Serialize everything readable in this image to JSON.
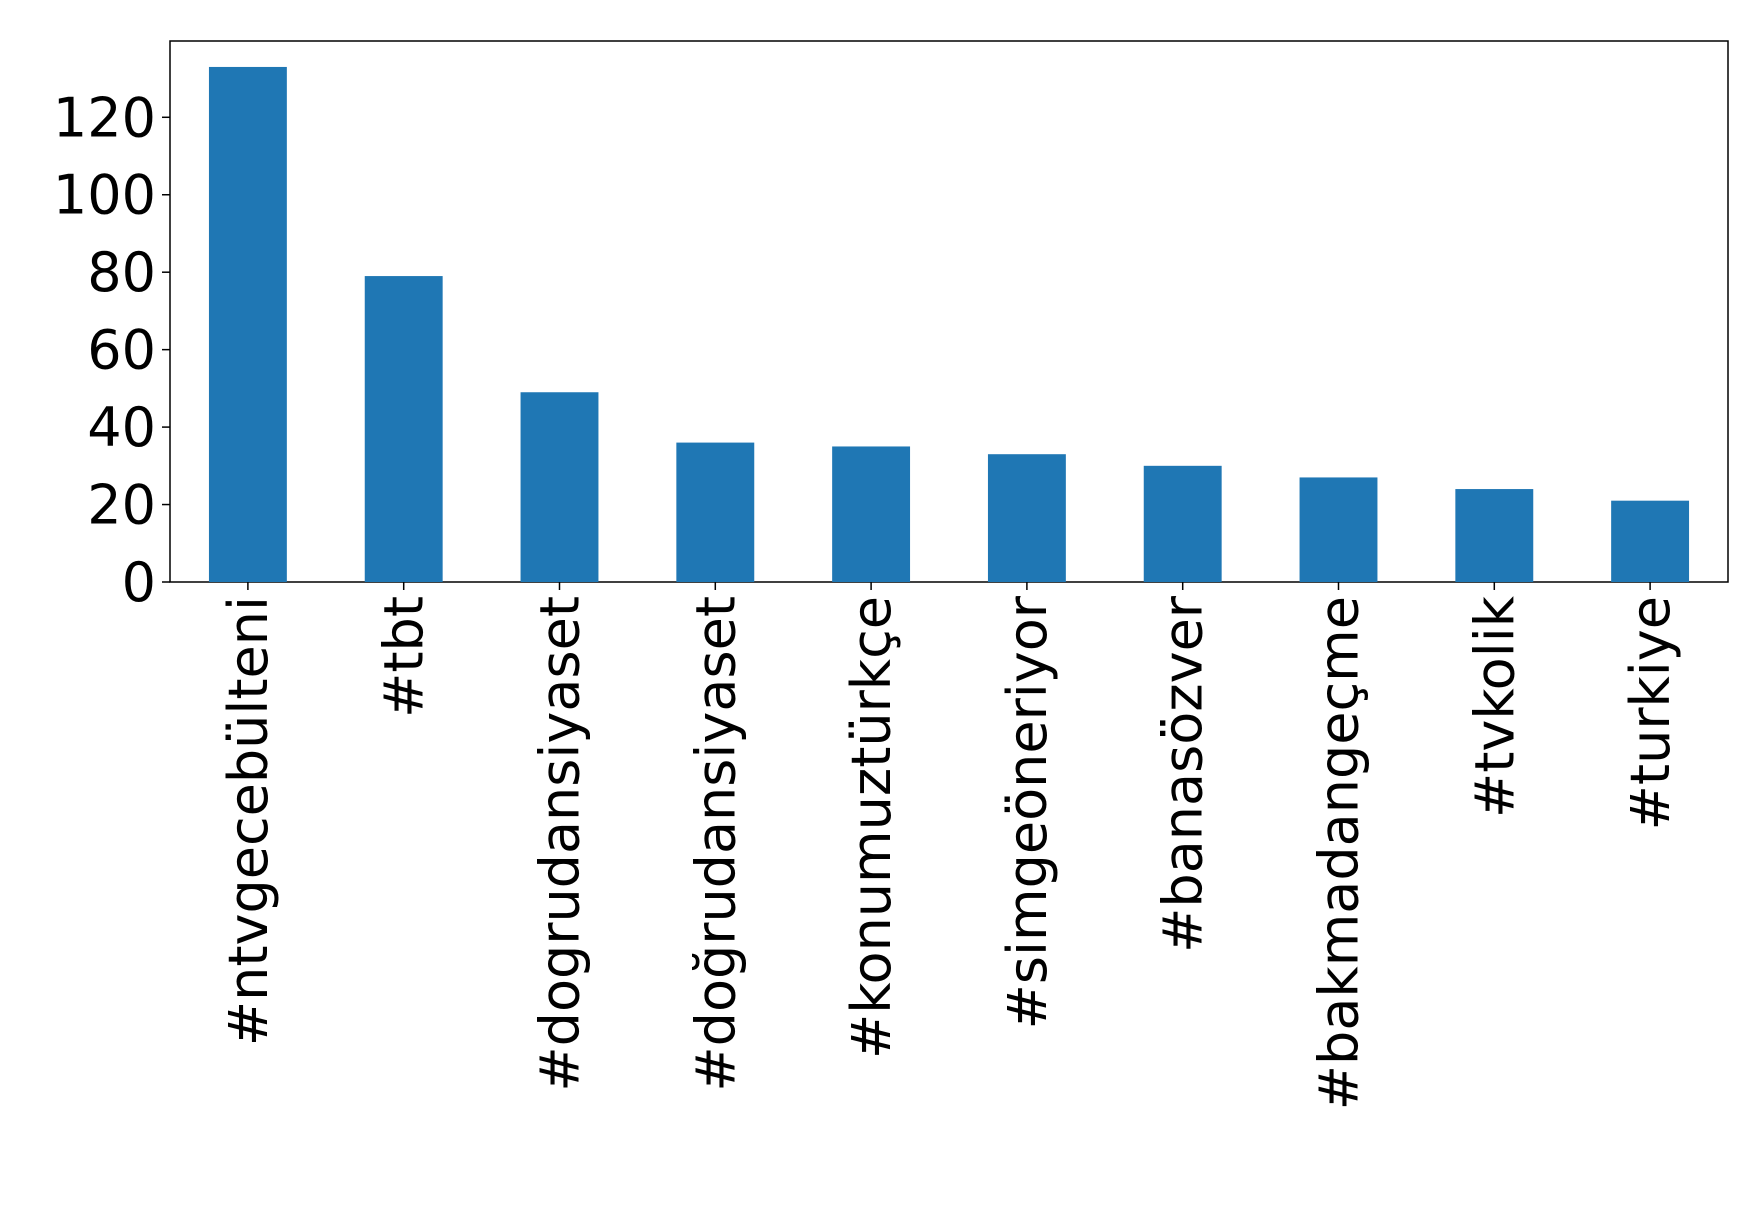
{
  "chart_data": {
    "type": "bar",
    "categories": [
      "#ntvgecebülteni",
      "#tbt",
      "#dogrudansiyaset",
      "#doğrudansiyaset",
      "#konumuztürkçe",
      "#simgeöneriyor",
      "#banasözver",
      "#bakmadangeçme",
      "#tvkolik",
      "#turkiye"
    ],
    "values": [
      133,
      79,
      49,
      36,
      35,
      33,
      30,
      27,
      24,
      21
    ],
    "color": "#1f77b4",
    "ylim": [
      0,
      139.7
    ],
    "yticks": [
      0,
      20,
      40,
      60,
      80,
      100,
      120
    ],
    "grid": false
  }
}
